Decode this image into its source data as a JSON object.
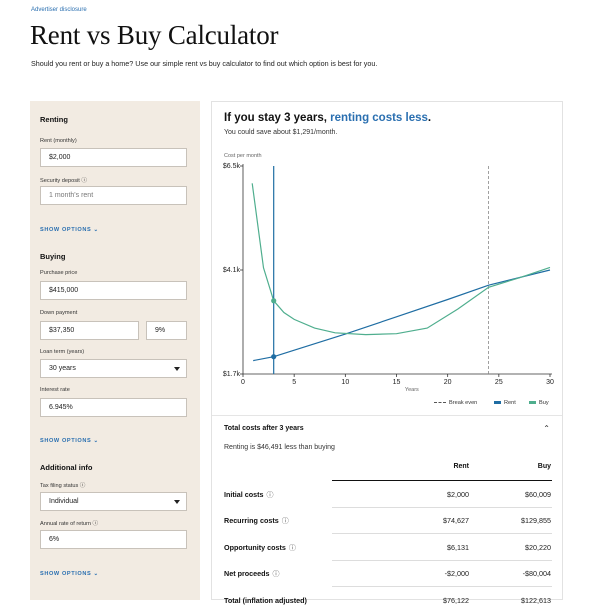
{
  "header": {
    "disclosure": "Advertiser disclosure",
    "title": "Rent vs Buy Calculator",
    "intro": "Should you rent or buy a home? Use our simple rent vs buy calculator to find out which option is best for you."
  },
  "sidebar": {
    "renting": {
      "title": "Renting",
      "rent_label": "Rent (monthly)",
      "rent_value": "$2,000",
      "deposit_label": "Security deposit ⓘ",
      "deposit_placeholder": "1 month's rent",
      "show_options": "SHOW OPTIONS ⌄"
    },
    "buying": {
      "title": "Buying",
      "price_label": "Purchase price",
      "price_value": "$415,000",
      "down_label": "Down payment",
      "down_value": "$37,350",
      "down_pct": "9%",
      "loan_label": "Loan term (years)",
      "loan_value": "30 years",
      "rate_label": "Interest rate",
      "rate_value": "6.945%",
      "show_options": "SHOW OPTIONS ⌄"
    },
    "additional": {
      "title": "Additional info",
      "filing_label": "Tax filing status ⓘ",
      "filing_value": "Individual",
      "return_label": "Annual rate of return ⓘ",
      "return_value": "6%",
      "show_options": "SHOW OPTIONS ⌄"
    }
  },
  "result": {
    "headline_prefix": "If you stay 3 years, ",
    "headline_highlight": "renting costs less",
    "headline_suffix": ".",
    "subhead": "You could save about $1,291/month."
  },
  "chart_data": {
    "type": "line",
    "ylabel": "Cost per month",
    "xlabel": "Years",
    "xlim": [
      0,
      30
    ],
    "ylim": [
      1700,
      6500
    ],
    "x_ticks": [
      "0",
      "5",
      "10",
      "15",
      "20",
      "25",
      "30"
    ],
    "y_ticks": [
      "$6.5k",
      "$4.1k",
      "$1.7k"
    ],
    "y_tick_values": [
      6500,
      4100,
      1700
    ],
    "break_even_year": 24,
    "selected_year": 3,
    "series": [
      {
        "name": "Rent",
        "color": "#1f6da3",
        "points": [
          [
            1,
            2010
          ],
          [
            3,
            2100
          ],
          [
            5,
            2250
          ],
          [
            10,
            2620
          ],
          [
            15,
            3020
          ],
          [
            20,
            3420
          ],
          [
            24,
            3750
          ],
          [
            30,
            4100
          ]
        ]
      },
      {
        "name": "Buy",
        "color": "#4fae8e",
        "points": [
          [
            0.9,
            6100
          ],
          [
            2,
            4150
          ],
          [
            3,
            3390
          ],
          [
            4,
            3120
          ],
          [
            5,
            2960
          ],
          [
            7,
            2760
          ],
          [
            9,
            2650
          ],
          [
            12,
            2610
          ],
          [
            15,
            2630
          ],
          [
            18,
            2760
          ],
          [
            21,
            3200
          ],
          [
            24,
            3700
          ],
          [
            27,
            3920
          ],
          [
            30,
            4160
          ]
        ]
      }
    ],
    "legend": [
      "Break even",
      "Rent",
      "Buy"
    ]
  },
  "totals": {
    "title": "Total costs after 3 years",
    "caret": "⌃",
    "subtitle": "Renting is $46,491 less than buying",
    "col_rent": "Rent",
    "col_buy": "Buy",
    "info_icon": "ⓘ",
    "rows": [
      {
        "name": "Initial costs",
        "rent": "$2,000",
        "buy": "$60,009"
      },
      {
        "name": "Recurring costs",
        "rent": "$74,627",
        "buy": "$129,855"
      },
      {
        "name": "Opportunity costs",
        "rent": "$6,131",
        "buy": "$20,220"
      },
      {
        "name": "Net proceeds",
        "rent": "-$2,000",
        "buy": "-$80,004"
      },
      {
        "name": "Total (inflation adjusted)",
        "rent": "$76,122",
        "buy": "$122,613"
      }
    ]
  },
  "colors": {
    "accent": "#2a6fb0",
    "rent": "#1f6da3",
    "buy": "#4fae8e",
    "panel": "#f2ebe2"
  }
}
